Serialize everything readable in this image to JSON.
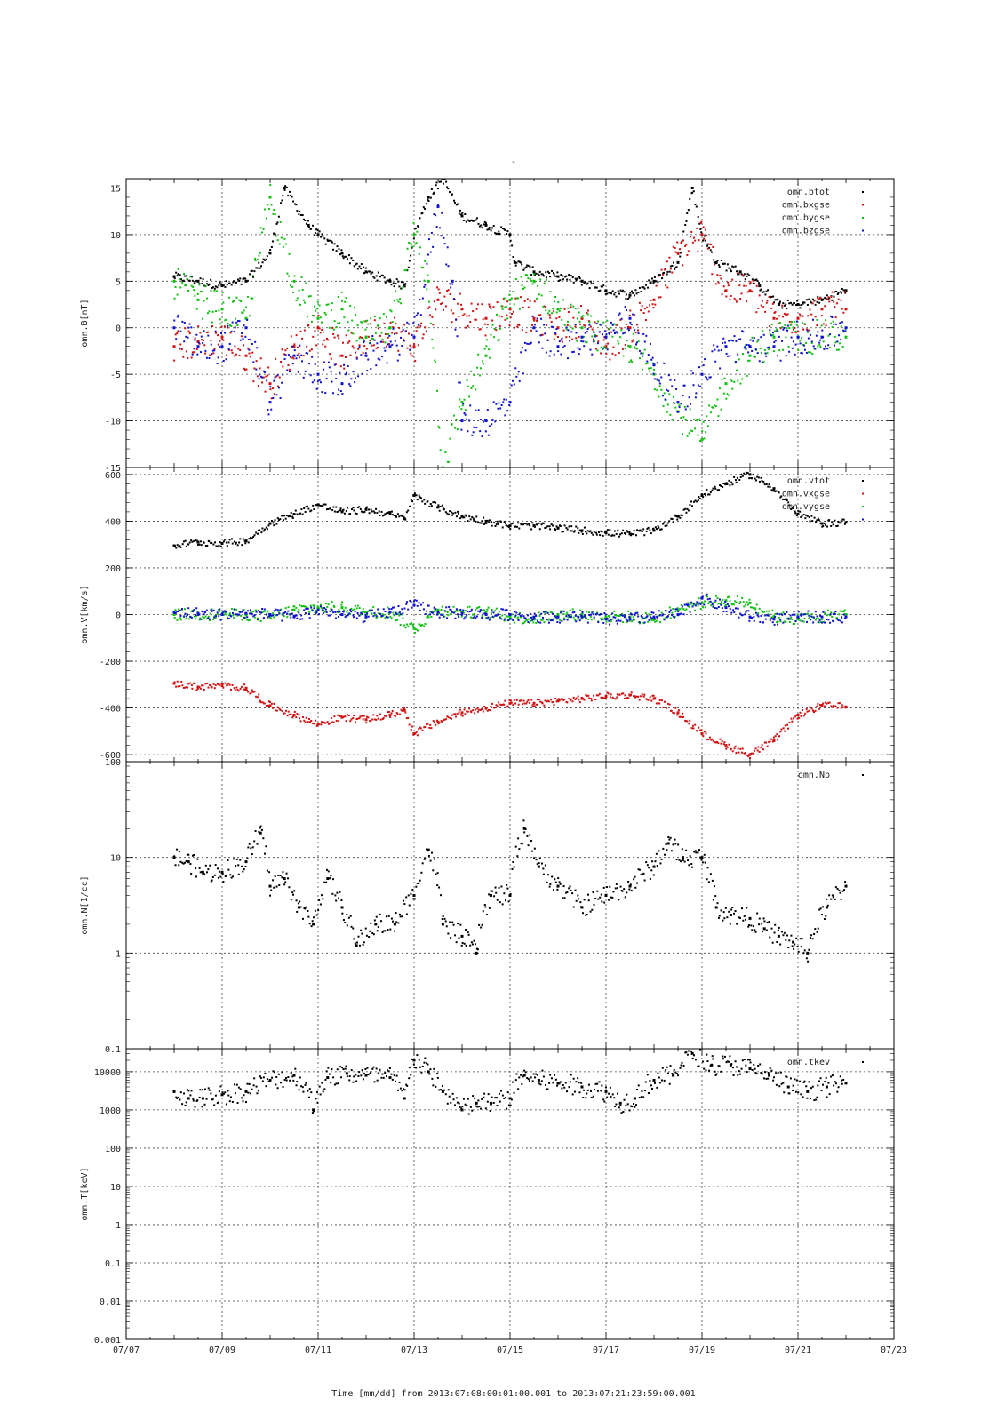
{
  "title": "-",
  "x_axis": {
    "tick_labels": [
      "07/07",
      "07/09",
      "07/11",
      "07/13",
      "07/15",
      "07/17",
      "07/19",
      "07/21",
      "07/23"
    ],
    "caption": "Time [mm/dd]  from 2013:07:08:00:01:00.001  to  2013:07:21:23:59:00.001",
    "range_days": [
      7,
      23
    ],
    "data_range_days": [
      8.0,
      22.0
    ]
  },
  "colors": {
    "black": "#000000",
    "red": "#d11010",
    "green": "#10c010",
    "blue": "#1010d0"
  },
  "chart_data": [
    {
      "type": "scatter",
      "ylabel": "omn.B[nT]",
      "ylim": [
        -15,
        16
      ],
      "yticks": [
        15,
        10,
        5,
        0,
        -5,
        -10,
        -15
      ],
      "legend_position": "top-right",
      "grid": true,
      "x_units": "day of July 2013",
      "series": [
        {
          "name": "omn.btot",
          "color": "#000000",
          "x": [
            8,
            8.5,
            9,
            9.5,
            10,
            10.3,
            10.8,
            11,
            11.5,
            12,
            12.5,
            12.8,
            13,
            13.3,
            13.6,
            14,
            14.5,
            15,
            15.1,
            15.5,
            16,
            16.5,
            17,
            17.5,
            18,
            18.5,
            18.8,
            19,
            19.3,
            19.8,
            20.2,
            20.6,
            21,
            21.5,
            22
          ],
          "y": [
            5.5,
            5,
            4.5,
            5,
            8,
            15,
            11,
            10,
            8,
            6,
            5,
            4.5,
            10,
            14,
            16,
            12,
            11,
            10,
            7,
            6,
            5.5,
            5,
            4,
            3.5,
            5,
            7,
            15,
            10,
            7,
            6,
            4.5,
            2.5,
            2.5,
            3,
            4
          ]
        },
        {
          "name": "omn.bxgse",
          "color": "#d11010",
          "x": [
            8,
            8.5,
            9,
            9.5,
            10,
            10.5,
            11,
            11.5,
            12,
            12.5,
            13,
            13.5,
            14,
            14.5,
            15,
            15.5,
            16,
            16.5,
            17,
            17.5,
            18,
            18.5,
            19,
            19.5,
            20,
            20.5,
            21,
            21.5,
            22
          ],
          "y": [
            -2,
            -1.5,
            -1,
            -3,
            -6,
            -2,
            0,
            -3,
            -1,
            0,
            -2,
            3,
            2,
            1,
            2,
            1,
            0,
            1,
            -2,
            0,
            3,
            8,
            10,
            4,
            4,
            1,
            1,
            2,
            2
          ]
        },
        {
          "name": "omn.bygse",
          "color": "#10c010",
          "x": [
            8,
            8.5,
            9,
            9.5,
            10,
            10.5,
            11,
            11.5,
            12,
            12.5,
            13,
            13.3,
            13.6,
            14,
            14.5,
            15,
            15.5,
            16,
            16.5,
            17,
            17.5,
            18,
            18.5,
            19,
            19.5,
            20,
            20.5,
            21,
            21.5,
            22
          ],
          "y": [
            5,
            3,
            2,
            1,
            14,
            5,
            1,
            2,
            -1,
            0,
            10,
            5,
            -15,
            -8,
            -3,
            3,
            5,
            2,
            0,
            -1,
            -2,
            -5,
            -9,
            -12,
            -6,
            -3,
            -1,
            -1,
            -1,
            -1
          ]
        },
        {
          "name": "omn.bzgse",
          "color": "#1010d0",
          "x": [
            8,
            8.5,
            9,
            9.5,
            10,
            10.5,
            11,
            11.5,
            12,
            12.5,
            13,
            13.5,
            13.8,
            14,
            14.5,
            15,
            15.5,
            16,
            16.5,
            17,
            17.5,
            18,
            18.5,
            19,
            19.5,
            20,
            20.5,
            21,
            21.5,
            22
          ],
          "y": [
            0,
            -2,
            -2,
            0,
            -8,
            -3,
            -5,
            -6,
            -3,
            -2,
            -1,
            13,
            5,
            -10,
            -10,
            -8,
            0,
            -2,
            -1,
            -1,
            1,
            -4,
            -8,
            -5,
            -2,
            -2,
            -2,
            -1,
            -1,
            0
          ]
        }
      ]
    },
    {
      "type": "scatter",
      "ylabel": "omn.V[km/s]",
      "ylim": [
        -630,
        630
      ],
      "yticks": [
        600,
        400,
        200,
        0,
        -200,
        -400,
        -600
      ],
      "legend_position": "top-right",
      "grid": true,
      "x_units": "day of July 2013",
      "series": [
        {
          "name": "omn.vtot",
          "color": "#000000",
          "x": [
            8,
            8.5,
            9,
            9.5,
            10,
            10.5,
            11,
            11.5,
            12,
            12.5,
            12.8,
            13,
            13.5,
            14,
            14.5,
            15,
            15.5,
            16,
            16.5,
            17,
            17.5,
            18,
            18.5,
            19,
            19.5,
            20,
            20.5,
            21,
            21.5,
            22
          ],
          "y": [
            295,
            310,
            305,
            315,
            390,
            430,
            470,
            440,
            450,
            430,
            410,
            510,
            460,
            420,
            400,
            380,
            380,
            370,
            360,
            350,
            345,
            360,
            420,
            510,
            560,
            600,
            540,
            430,
            390,
            395
          ]
        },
        {
          "name": "omn.vxgse",
          "color": "#d11010",
          "x": [
            8,
            8.5,
            9,
            9.5,
            10,
            10.5,
            11,
            11.5,
            12,
            12.5,
            12.8,
            13,
            13.5,
            14,
            14.5,
            15,
            15.5,
            16,
            16.5,
            17,
            17.5,
            18,
            18.5,
            19,
            19.5,
            20,
            20.5,
            21,
            21.5,
            22
          ],
          "y": [
            -295,
            -310,
            -305,
            -315,
            -390,
            -430,
            -470,
            -440,
            -450,
            -430,
            -410,
            -510,
            -460,
            -420,
            -400,
            -380,
            -380,
            -370,
            -360,
            -350,
            -345,
            -360,
            -420,
            -510,
            -560,
            -600,
            -540,
            -430,
            -390,
            -395
          ]
        },
        {
          "name": "omn.vygse",
          "color": "#10c010",
          "x": [
            8,
            8.5,
            9,
            9.5,
            10,
            10.5,
            11,
            11.5,
            12,
            12.5,
            13,
            13.5,
            14,
            14.5,
            15,
            15.5,
            16,
            16.5,
            17,
            17.5,
            18,
            18.5,
            19,
            19.5,
            20,
            20.5,
            21,
            21.5,
            22
          ],
          "y": [
            0,
            0,
            0,
            0,
            -10,
            20,
            30,
            30,
            10,
            10,
            -60,
            20,
            10,
            10,
            -10,
            -20,
            0,
            0,
            -10,
            -10,
            -20,
            20,
            50,
            60,
            50,
            -10,
            -20,
            -10,
            0
          ]
        },
        {
          "name": "",
          "color": "#1010d0",
          "x": [
            8,
            8.5,
            9,
            9.5,
            10,
            10.5,
            11,
            11.5,
            12,
            12.5,
            13,
            13.5,
            14,
            14.5,
            15,
            15.5,
            16,
            16.5,
            17,
            17.5,
            18,
            18.5,
            19,
            19.5,
            20,
            20.5,
            21,
            21.5,
            22
          ],
          "y": [
            10,
            5,
            0,
            5,
            0,
            -10,
            20,
            0,
            -10,
            10,
            40,
            10,
            5,
            0,
            0,
            -10,
            -10,
            -10,
            -20,
            -20,
            -10,
            0,
            70,
            30,
            -10,
            -20,
            -10,
            -10,
            -10
          ]
        }
      ]
    },
    {
      "type": "scatter",
      "ylabel": "omn.N[1/cc]",
      "ylim": [
        0.1,
        100
      ],
      "yscale": "log",
      "ytick_values": [
        100,
        10,
        1,
        0.1
      ],
      "yticks": [
        "100",
        "10",
        "1",
        "0.1"
      ],
      "legend_position": "top-right",
      "grid": true,
      "x_units": "day of July 2013",
      "series": [
        {
          "name": "omn.Np",
          "color": "#000000",
          "x": [
            8,
            8.3,
            8.6,
            9,
            9.5,
            9.8,
            10,
            10.3,
            10.6,
            10.9,
            11.2,
            11.5,
            11.8,
            12.2,
            12.6,
            13,
            13.3,
            13.6,
            14,
            14.3,
            14.6,
            15,
            15.3,
            15.6,
            16,
            16.5,
            17,
            17.5,
            18,
            18.3,
            18.6,
            19,
            19.3,
            19.6,
            20,
            20.3,
            20.6,
            20.9,
            21.2,
            21.6,
            22
          ],
          "y": [
            10,
            9,
            7,
            7,
            9,
            18,
            5,
            6,
            3,
            2,
            6,
            3,
            1.2,
            2,
            2,
            4,
            12,
            2,
            1.5,
            1,
            4,
            4,
            20,
            8,
            5,
            3,
            4,
            5,
            8,
            14,
            10,
            10,
            3,
            2.5,
            2.3,
            1.8,
            1.5,
            1.3,
            1,
            3,
            5
          ]
        }
      ]
    },
    {
      "type": "scatter",
      "ylabel": "omn.T[keV]",
      "ylim": [
        0.001,
        40000
      ],
      "yscale": "log",
      "ytick_values": [
        10000,
        1000,
        100,
        10,
        1,
        0.1,
        0.01,
        0.001
      ],
      "yticks": [
        "10000",
        "1000",
        "100",
        "10",
        "1",
        "0.1",
        "0.01",
        "0.001"
      ],
      "legend_position": "top-right",
      "grid": true,
      "x_units": "day of July 2013",
      "series": [
        {
          "name": "omn.tkev",
          "color": "#000000",
          "x": [
            8,
            8.3,
            8.6,
            9,
            9.5,
            10,
            10.5,
            10.9,
            11.2,
            11.6,
            12,
            12.5,
            12.8,
            13,
            13.3,
            13.6,
            14,
            14.3,
            14.6,
            15,
            15.3,
            15.6,
            16,
            16.5,
            17,
            17.3,
            17.6,
            18,
            18.4,
            18.8,
            19.2,
            19.6,
            20,
            20.4,
            20.8,
            21.2,
            21.6,
            22
          ],
          "y": [
            3000,
            2000,
            2000,
            2500,
            3000,
            6000,
            8000,
            1000,
            7000,
            9000,
            8000,
            7000,
            2000,
            20000,
            10000,
            3000,
            1000,
            1500,
            1500,
            2000,
            8000,
            6000,
            5000,
            4000,
            3000,
            1500,
            2000,
            6000,
            8000,
            30000,
            15000,
            15000,
            12000,
            8000,
            4000,
            3000,
            4000,
            5000
          ]
        }
      ]
    }
  ]
}
